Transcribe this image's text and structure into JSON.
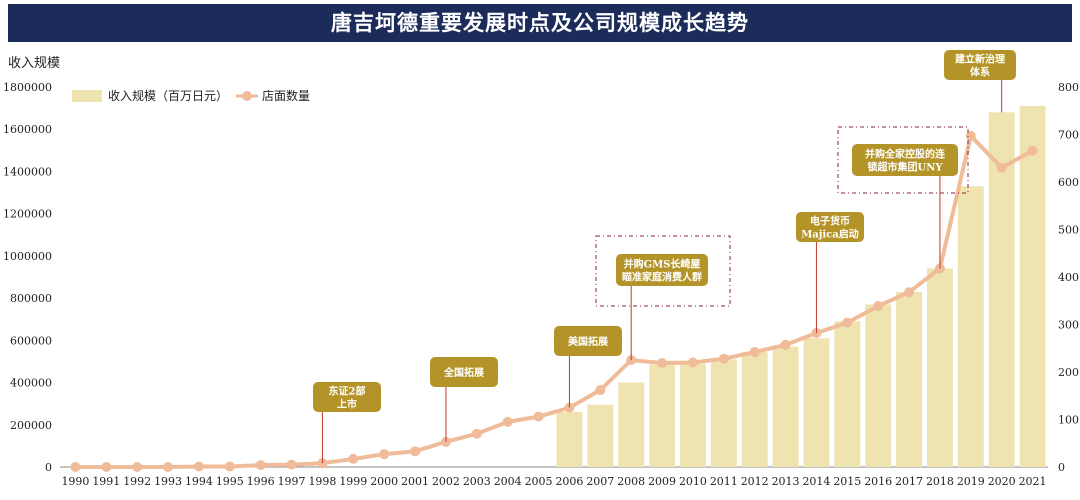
{
  "title": "唐吉坷德重要发展时点及公司规模成长趋势",
  "colors": {
    "title_bg": "#1c2c5a",
    "bar": "#efe4b0",
    "line": "#f0bb98",
    "annotation_bg": "#b49428",
    "leader": "#c0392b",
    "dashed_box": "#8b2346"
  },
  "chart_data": {
    "type": "bar+line",
    "title": "唐吉坷德重要发展时点及公司规模成长趋势",
    "ylabel": "收入规模",
    "ylim": [
      0,
      1800000
    ],
    "y_ticks": [
      "0",
      "200000",
      "400000",
      "600000",
      "800000",
      "1000000",
      "1200000",
      "1400000",
      "1600000",
      "1800000"
    ],
    "y2lim": [
      0,
      800
    ],
    "y2_ticks": [
      "0",
      "100",
      "200",
      "300",
      "400",
      "500",
      "600",
      "700",
      "800"
    ],
    "categories": [
      "1990",
      "1991",
      "1992",
      "1993",
      "1994",
      "1995",
      "1996",
      "1997",
      "1998",
      "1999",
      "2000",
      "2001",
      "2002",
      "2003",
      "2004",
      "2005",
      "2006",
      "2007",
      "2008",
      "2009",
      "2010",
      "2011",
      "2012",
      "2013",
      "2014",
      "2015",
      "2016",
      "2017",
      "2018",
      "2019",
      "2020",
      "2021"
    ],
    "series": [
      {
        "name": "收入规模（百万日元）",
        "type": "bar",
        "axis": "left",
        "values": [
          null,
          null,
          null,
          null,
          null,
          null,
          null,
          null,
          null,
          null,
          null,
          null,
          null,
          null,
          null,
          null,
          260000,
          295000,
          400000,
          485000,
          490000,
          510000,
          545000,
          570000,
          610000,
          690000,
          770000,
          830000,
          940000,
          1330000,
          1680000,
          1710000
        ]
      },
      {
        "name": "店面数量",
        "type": "line",
        "axis": "right",
        "values": [
          0,
          0,
          0,
          0,
          1,
          1,
          4,
          5,
          8,
          17,
          27,
          33,
          53,
          70,
          95,
          106,
          125,
          162,
          225,
          219,
          220,
          228,
          242,
          257,
          282,
          304,
          339,
          368,
          418,
          697,
          630,
          666
        ]
      }
    ],
    "annotations": [
      {
        "lines": [
          "东证2部",
          "上市"
        ],
        "year": "1998",
        "boxed": false
      },
      {
        "lines": [
          "全国拓展"
        ],
        "year": "2002",
        "boxed": false
      },
      {
        "lines": [
          "美国拓展"
        ],
        "year": "2006",
        "boxed": false
      },
      {
        "lines": [
          "并购GMS长崎屋",
          "瞄准家庭消费人群"
        ],
        "year": "2008",
        "boxed": true
      },
      {
        "lines": [
          "电子货币",
          "Majica启动"
        ],
        "year": "2014",
        "boxed": false
      },
      {
        "lines": [
          "并购全家控股的连",
          "锁超市集团UNY"
        ],
        "year": "2018",
        "boxed": true
      },
      {
        "lines": [
          "建立新治理",
          "体系"
        ],
        "year": "2020",
        "boxed": false
      }
    ],
    "legend_position": "top-left"
  }
}
